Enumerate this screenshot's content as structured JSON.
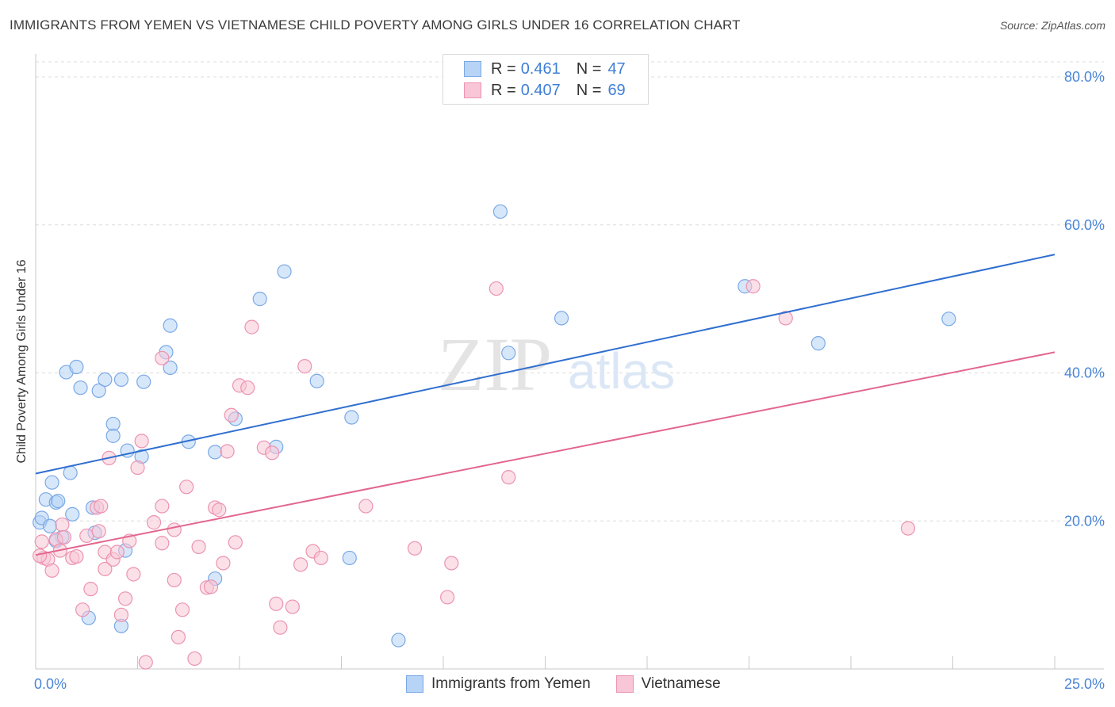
{
  "title": "IMMIGRANTS FROM YEMEN VS VIETNAMESE CHILD POVERTY AMONG GIRLS UNDER 16 CORRELATION CHART",
  "source": "Source: ZipAtlas.com",
  "watermark": {
    "zip": "ZIP",
    "atlas": "atlas"
  },
  "legend": {
    "rows": [
      {
        "r_label": "R =",
        "r_value": "0.461",
        "n_label": "N =",
        "n_value": "47"
      },
      {
        "r_label": "R =",
        "r_value": "0.407",
        "n_label": "N =",
        "n_value": "69"
      }
    ]
  },
  "bottom_legend": [
    "Immigrants from Yemen",
    "Vietnamese"
  ],
  "chart_data": {
    "type": "scatter",
    "xlabel": "",
    "ylabel": "Child Poverty Among Girls Under 16",
    "xlim": [
      0,
      25
    ],
    "ylim": [
      0,
      80
    ],
    "x_tick_labels": [
      "0.0%",
      "25.0%"
    ],
    "y_tick_values": [
      20,
      40,
      60,
      80
    ],
    "y_tick_labels": [
      "20.0%",
      "40.0%",
      "60.0%",
      "80.0%"
    ],
    "grid": true,
    "legend_position": "top-center",
    "colors": {
      "yemen_fill": "#b7d3f5",
      "yemen_stroke": "#7aa9e6",
      "yemen_line": "#2f6fcf",
      "viet_fill": "#f8c6d6",
      "viet_stroke": "#ec93b1",
      "viet_line": "#e2668f"
    },
    "series": [
      {
        "name": "Immigrants from Yemen",
        "r": 0.461,
        "n": 47,
        "trend": {
          "x": [
            0,
            25
          ],
          "y": [
            26.4,
            56.0
          ]
        },
        "points": [
          [
            0.1,
            19.8
          ],
          [
            0.15,
            20.4
          ],
          [
            0.25,
            22.9
          ],
          [
            0.35,
            19.3
          ],
          [
            0.4,
            25.2
          ],
          [
            0.5,
            22.5
          ],
          [
            0.55,
            22.7
          ],
          [
            0.65,
            17.8
          ],
          [
            0.85,
            26.5
          ],
          [
            0.9,
            20.9
          ],
          [
            0.75,
            40.1
          ],
          [
            1.0,
            40.8
          ],
          [
            1.1,
            38.0
          ],
          [
            1.4,
            21.8
          ],
          [
            1.45,
            18.4
          ],
          [
            1.55,
            37.6
          ],
          [
            1.7,
            39.1
          ],
          [
            1.9,
            33.1
          ],
          [
            1.9,
            31.5
          ],
          [
            2.1,
            39.1
          ],
          [
            2.25,
            29.5
          ],
          [
            2.6,
            28.7
          ],
          [
            2.65,
            38.8
          ],
          [
            3.2,
            42.8
          ],
          [
            3.3,
            40.7
          ],
          [
            3.3,
            46.4
          ],
          [
            3.75,
            30.7
          ],
          [
            4.4,
            29.3
          ],
          [
            4.9,
            33.8
          ],
          [
            5.5,
            50.0
          ],
          [
            5.9,
            30.0
          ],
          [
            6.1,
            53.7
          ],
          [
            6.9,
            38.9
          ],
          [
            7.75,
            34.0
          ],
          [
            7.7,
            15.0
          ],
          [
            8.9,
            3.9
          ],
          [
            11.4,
            61.8
          ],
          [
            11.6,
            42.7
          ],
          [
            12.9,
            47.4
          ],
          [
            17.4,
            51.7
          ],
          [
            19.2,
            44.0
          ],
          [
            22.4,
            47.3
          ],
          [
            1.3,
            6.9
          ],
          [
            2.1,
            5.8
          ],
          [
            4.4,
            12.2
          ],
          [
            2.2,
            16.0
          ],
          [
            0.5,
            17.3
          ]
        ]
      },
      {
        "name": "Vietnamese",
        "r": 0.407,
        "n": 69,
        "trend": {
          "x": [
            0,
            25
          ],
          "y": [
            15.4,
            42.8
          ]
        },
        "points": [
          [
            0.15,
            17.2
          ],
          [
            0.2,
            15.0
          ],
          [
            0.3,
            14.8
          ],
          [
            0.4,
            13.3
          ],
          [
            0.5,
            17.5
          ],
          [
            0.6,
            16.0
          ],
          [
            0.65,
            19.5
          ],
          [
            0.7,
            17.8
          ],
          [
            0.9,
            15.0
          ],
          [
            1.0,
            15.2
          ],
          [
            1.15,
            8.0
          ],
          [
            1.25,
            18.0
          ],
          [
            1.35,
            10.8
          ],
          [
            1.5,
            21.8
          ],
          [
            1.55,
            18.6
          ],
          [
            1.6,
            22.0
          ],
          [
            1.7,
            15.8
          ],
          [
            1.8,
            28.5
          ],
          [
            1.9,
            14.8
          ],
          [
            2.0,
            15.8
          ],
          [
            2.1,
            7.3
          ],
          [
            2.2,
            9.5
          ],
          [
            2.3,
            17.3
          ],
          [
            2.4,
            12.8
          ],
          [
            2.5,
            27.2
          ],
          [
            2.6,
            30.8
          ],
          [
            2.7,
            0.9
          ],
          [
            2.9,
            19.8
          ],
          [
            3.1,
            42.0
          ],
          [
            3.1,
            22.0
          ],
          [
            3.4,
            12.0
          ],
          [
            3.4,
            18.8
          ],
          [
            3.5,
            4.3
          ],
          [
            3.6,
            8.0
          ],
          [
            3.7,
            24.6
          ],
          [
            3.9,
            1.4
          ],
          [
            4.0,
            16.5
          ],
          [
            4.2,
            11.0
          ],
          [
            4.3,
            11.1
          ],
          [
            4.4,
            21.8
          ],
          [
            4.5,
            21.5
          ],
          [
            4.6,
            14.3
          ],
          [
            4.7,
            29.4
          ],
          [
            4.8,
            34.3
          ],
          [
            4.9,
            17.1
          ],
          [
            5.0,
            38.3
          ],
          [
            5.2,
            38.0
          ],
          [
            5.3,
            46.2
          ],
          [
            5.6,
            29.9
          ],
          [
            5.8,
            29.2
          ],
          [
            5.9,
            8.8
          ],
          [
            6.0,
            5.6
          ],
          [
            6.3,
            8.4
          ],
          [
            6.5,
            14.1
          ],
          [
            6.6,
            40.9
          ],
          [
            6.8,
            15.9
          ],
          [
            7.0,
            15.0
          ],
          [
            8.1,
            22.0
          ],
          [
            9.3,
            16.3
          ],
          [
            10.1,
            9.7
          ],
          [
            10.2,
            14.3
          ],
          [
            11.3,
            51.4
          ],
          [
            11.6,
            25.9
          ],
          [
            17.6,
            51.7
          ],
          [
            18.4,
            47.4
          ],
          [
            21.4,
            19.0
          ],
          [
            1.7,
            13.5
          ],
          [
            3.1,
            17.0
          ],
          [
            0.1,
            15.3
          ]
        ]
      }
    ]
  }
}
